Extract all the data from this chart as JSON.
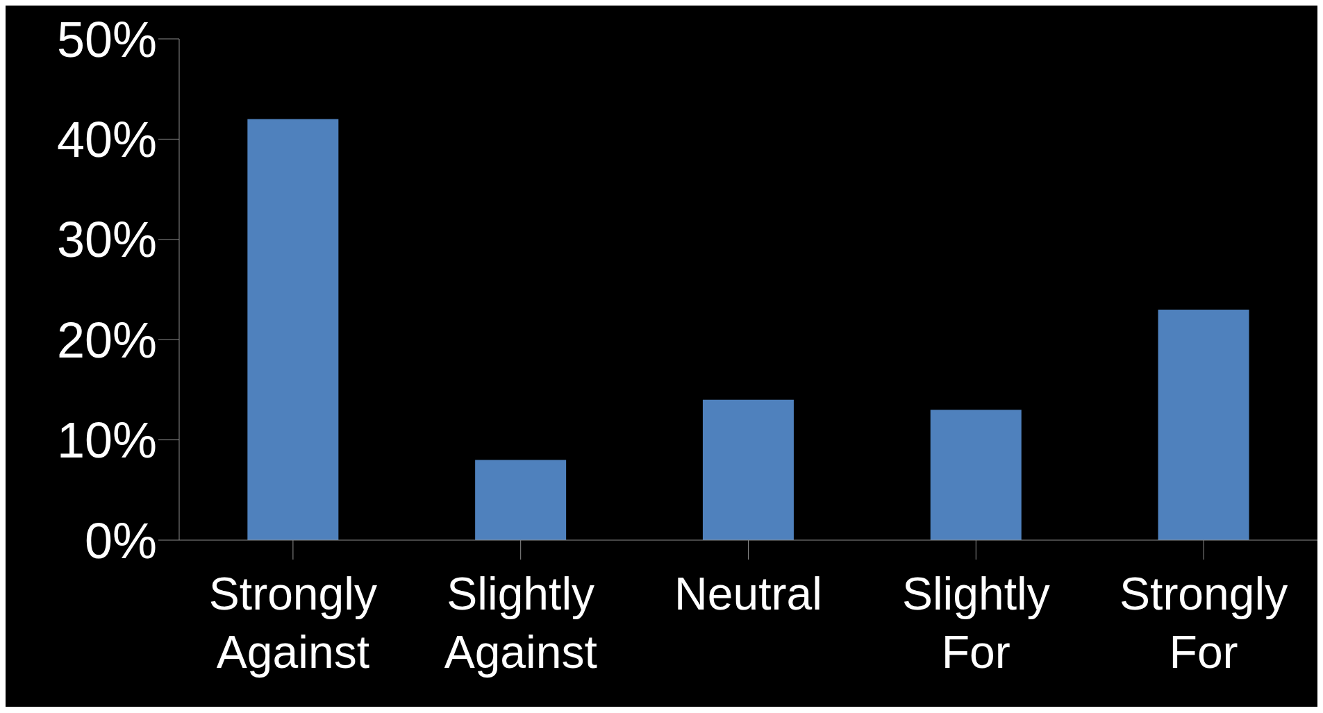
{
  "chart_data": {
    "type": "bar",
    "categories": [
      "Strongly Against",
      "Slightly Against",
      "Neutral",
      "Slightly For",
      "Strongly For"
    ],
    "values": [
      42,
      8,
      14,
      13,
      23
    ],
    "color": "#4f81bd",
    "ylim": [
      0,
      50
    ],
    "yticks": [
      {
        "value": 0,
        "label": "0%"
      },
      {
        "value": 10,
        "label": "10%"
      },
      {
        "value": 20,
        "label": "20%"
      },
      {
        "value": 30,
        "label": "30%"
      },
      {
        "value": 40,
        "label": "40%"
      },
      {
        "value": 50,
        "label": "50%"
      }
    ],
    "grid": false,
    "legend": false
  }
}
